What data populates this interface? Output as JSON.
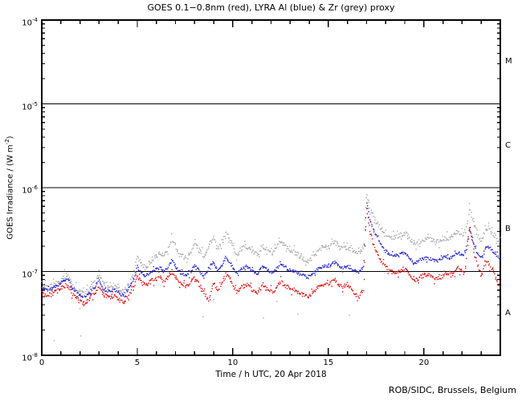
{
  "chart_data": {
    "type": "scatter",
    "title": "GOES 0.1−0.8nm (red), LYRA Al (blue) & Zr (grey) proxy",
    "date": "20 Apr 2018",
    "footer": "ROB/SIDC, Brussels, Belgium",
    "x_axis": {
      "label": "Time / h UTC, 20 Apr 2018",
      "min": 0,
      "max": 24,
      "major_tick_step": 5,
      "minor_tick_step": 1,
      "tick_values": [
        0,
        5,
        10,
        15,
        20
      ],
      "tick_labels": [
        "0",
        "5",
        "10",
        "15",
        "20"
      ]
    },
    "y_axis": {
      "label_prefix": "GOES Irradiance / (W m",
      "label_sup": "-2",
      "label_suffix": ")",
      "scale": "log",
      "min": 1e-08,
      "max": 0.0001,
      "tick_base": "10",
      "tick_exponents": [
        -4,
        -5,
        -6,
        -7,
        -8
      ]
    },
    "reference_lines": [
      1e-05,
      1e-06,
      1e-07
    ],
    "flare_classes": [
      {
        "label": "M",
        "range": [
          1e-05,
          0.0001
        ]
      },
      {
        "label": "C",
        "range": [
          1e-06,
          1e-05
        ]
      },
      {
        "label": "B",
        "range": [
          1e-07,
          1e-06
        ]
      },
      {
        "label": "A",
        "range": [
          1e-08,
          1e-07
        ]
      }
    ],
    "series": [
      {
        "name": "LYRA Zr proxy",
        "color": "#a8a8a8",
        "points": [
          [
            0,
            6.8e-08
          ],
          [
            0.3,
            6.4e-08
          ],
          [
            0.6,
            6.9e-08
          ],
          [
            0.9,
            7.6e-08
          ],
          [
            1.2,
            8.8e-08
          ],
          [
            1.35,
            9.2e-08
          ],
          [
            1.6,
            7e-08
          ],
          [
            1.9,
            5.9e-08
          ],
          [
            2.2,
            5.5e-08
          ],
          [
            2.5,
            6.2e-08
          ],
          [
            2.8,
            7.4e-08
          ],
          [
            3.0,
            9.4e-08
          ],
          [
            3.2,
            7.2e-08
          ],
          [
            3.5,
            6.6e-08
          ],
          [
            3.8,
            6.9e-08
          ],
          [
            4.1,
            6.1e-08
          ],
          [
            4.3,
            5.7e-08
          ],
          [
            4.6,
            7.4e-08
          ],
          [
            4.85,
            1e-07
          ],
          [
            5.0,
            1.6e-07
          ],
          [
            5.2,
            1.25e-07
          ],
          [
            5.45,
            1.13e-07
          ],
          [
            5.7,
            1.28e-07
          ],
          [
            5.95,
            1.5e-07
          ],
          [
            6.15,
            1.65e-07
          ],
          [
            6.4,
            1.5e-07
          ],
          [
            6.6,
            1.8e-07
          ],
          [
            6.8,
            2.4e-07
          ],
          [
            7.0,
            1.95e-07
          ],
          [
            7.3,
            1.55e-07
          ],
          [
            7.6,
            1.45e-07
          ],
          [
            7.8,
            1.7e-07
          ],
          [
            8.0,
            2.2e-07
          ],
          [
            8.25,
            1.8e-07
          ],
          [
            8.5,
            1.52e-07
          ],
          [
            8.8,
            2.2e-07
          ],
          [
            9.0,
            2.5e-07
          ],
          [
            9.2,
            1.8e-07
          ],
          [
            9.45,
            2.3e-07
          ],
          [
            9.65,
            2.9e-07
          ],
          [
            9.9,
            2.3e-07
          ],
          [
            10.2,
            1.55e-07
          ],
          [
            10.5,
            1.9e-07
          ],
          [
            10.75,
            2e-07
          ],
          [
            11.05,
            1.7e-07
          ],
          [
            11.3,
            1.6e-07
          ],
          [
            11.55,
            2e-07
          ],
          [
            11.8,
            1.8e-07
          ],
          [
            12.1,
            1.6e-07
          ],
          [
            12.5,
            2.3e-07
          ],
          [
            12.8,
            2e-07
          ],
          [
            13.2,
            1.7e-07
          ],
          [
            13.6,
            1.45e-07
          ],
          [
            13.95,
            1.3e-07
          ],
          [
            14.3,
            1.6e-07
          ],
          [
            14.65,
            1.95e-07
          ],
          [
            15.0,
            1.95e-07
          ],
          [
            15.35,
            2.3e-07
          ],
          [
            15.7,
            1.9e-07
          ],
          [
            16.0,
            1.95e-07
          ],
          [
            16.3,
            1.75e-07
          ],
          [
            16.6,
            1.65e-07
          ],
          [
            16.85,
            1.9e-07
          ],
          [
            17.0,
            8.5e-07
          ],
          [
            17.15,
            6e-07
          ],
          [
            17.4,
            4.3e-07
          ],
          [
            17.7,
            3.3e-07
          ],
          [
            18.0,
            2.7e-07
          ],
          [
            18.3,
            2.5e-07
          ],
          [
            18.6,
            2.6e-07
          ],
          [
            19.0,
            2.9e-07
          ],
          [
            19.3,
            2.4e-07
          ],
          [
            19.55,
            2.1e-07
          ],
          [
            19.9,
            2.4e-07
          ],
          [
            20.2,
            2.5e-07
          ],
          [
            20.5,
            2.35e-07
          ],
          [
            20.8,
            2.3e-07
          ],
          [
            21.1,
            2.5e-07
          ],
          [
            21.4,
            2.5e-07
          ],
          [
            21.8,
            3.05e-07
          ],
          [
            22.05,
            2.7e-07
          ],
          [
            22.2,
            3.2e-07
          ],
          [
            22.4,
            5.6e-07
          ],
          [
            22.6,
            3.9e-07
          ],
          [
            22.8,
            2.8e-07
          ],
          [
            23.0,
            2.3e-07
          ],
          [
            23.3,
            3.4e-07
          ],
          [
            23.6,
            2.85e-07
          ],
          [
            23.9,
            2.4e-07
          ],
          [
            24,
            2.3e-07
          ]
        ],
        "stray_points": [
          [
            0.65,
            1.5e-08
          ],
          [
            2.0,
            3.6e-08
          ],
          [
            2.05,
            1.7e-08
          ],
          [
            8.45,
            2.9e-08
          ],
          [
            9.0,
            4.6e-08
          ],
          [
            11.6,
            2.8e-08
          ],
          [
            12.3,
            4.4e-08
          ],
          [
            13.4,
            3.1e-08
          ],
          [
            16.1,
            3e-08
          ]
        ]
      },
      {
        "name": "LYRA Al proxy",
        "color": "#2222cc",
        "points": [
          [
            0,
            6.3e-08
          ],
          [
            0.3,
            6e-08
          ],
          [
            0.6,
            6.4e-08
          ],
          [
            0.9,
            7e-08
          ],
          [
            1.2,
            7.9e-08
          ],
          [
            1.35,
            8.2e-08
          ],
          [
            1.6,
            6.4e-08
          ],
          [
            1.9,
            5.4e-08
          ],
          [
            2.2,
            4.9e-08
          ],
          [
            2.5,
            5.6e-08
          ],
          [
            2.8,
            6.6e-08
          ],
          [
            3.0,
            7.9e-08
          ],
          [
            3.2,
            6.3e-08
          ],
          [
            3.5,
            5.8e-08
          ],
          [
            3.8,
            6.1e-08
          ],
          [
            4.1,
            5.4e-08
          ],
          [
            4.3,
            5.1e-08
          ],
          [
            4.6,
            6.4e-08
          ],
          [
            4.85,
            8.4e-08
          ],
          [
            5.0,
            1.15e-07
          ],
          [
            5.2,
            9.6e-08
          ],
          [
            5.45,
            8.8e-08
          ],
          [
            5.7,
            9.6e-08
          ],
          [
            5.95,
            1.05e-07
          ],
          [
            6.15,
            1.1e-07
          ],
          [
            6.4,
            1e-07
          ],
          [
            6.6,
            1.08e-07
          ],
          [
            6.8,
            1.35e-07
          ],
          [
            7.0,
            1.15e-07
          ],
          [
            7.3,
            9.5e-08
          ],
          [
            7.6,
            9e-08
          ],
          [
            7.8,
            1e-07
          ],
          [
            8.0,
            1.2e-07
          ],
          [
            8.25,
            1e-07
          ],
          [
            8.5,
            8.6e-08
          ],
          [
            8.8,
            1.15e-07
          ],
          [
            9.0,
            1.3e-07
          ],
          [
            9.2,
            1e-07
          ],
          [
            9.45,
            1.2e-07
          ],
          [
            9.65,
            1.5e-07
          ],
          [
            9.9,
            1.2e-07
          ],
          [
            10.2,
            9.4e-08
          ],
          [
            10.5,
            1.1e-07
          ],
          [
            10.75,
            1.15e-07
          ],
          [
            11.05,
            1e-07
          ],
          [
            11.3,
            9.5e-08
          ],
          [
            11.55,
            1.15e-07
          ],
          [
            11.8,
            1.05e-07
          ],
          [
            12.1,
            9.5e-08
          ],
          [
            12.5,
            1.25e-07
          ],
          [
            12.8,
            1.1e-07
          ],
          [
            13.2,
            1e-07
          ],
          [
            13.6,
            9.2e-08
          ],
          [
            13.95,
            8.5e-08
          ],
          [
            14.3,
            1e-07
          ],
          [
            14.65,
            1.15e-07
          ],
          [
            15.0,
            1.15e-07
          ],
          [
            15.35,
            1.3e-07
          ],
          [
            15.7,
            1.1e-07
          ],
          [
            16.0,
            1.15e-07
          ],
          [
            16.3,
            1.05e-07
          ],
          [
            16.6,
            9.8e-08
          ],
          [
            16.85,
            1.15e-07
          ],
          [
            17.0,
            6.5e-07
          ],
          [
            17.15,
            4.4e-07
          ],
          [
            17.4,
            3e-07
          ],
          [
            17.7,
            2.2e-07
          ],
          [
            18.0,
            1.75e-07
          ],
          [
            18.3,
            1.55e-07
          ],
          [
            18.6,
            1.55e-07
          ],
          [
            19.0,
            1.7e-07
          ],
          [
            19.3,
            1.4e-07
          ],
          [
            19.55,
            1.25e-07
          ],
          [
            19.9,
            1.4e-07
          ],
          [
            20.2,
            1.45e-07
          ],
          [
            20.5,
            1.35e-07
          ],
          [
            20.8,
            1.35e-07
          ],
          [
            21.1,
            1.5e-07
          ],
          [
            21.4,
            1.45e-07
          ],
          [
            21.8,
            1.7e-07
          ],
          [
            22.05,
            1.55e-07
          ],
          [
            22.2,
            1.8e-07
          ],
          [
            22.4,
            3.3e-07
          ],
          [
            22.6,
            2.2e-07
          ],
          [
            22.8,
            1.65e-07
          ],
          [
            23.0,
            1.45e-07
          ],
          [
            23.3,
            2e-07
          ],
          [
            23.6,
            1.75e-07
          ],
          [
            23.9,
            1.5e-07
          ],
          [
            24,
            1.4e-07
          ]
        ],
        "stray_points": []
      },
      {
        "name": "GOES 0.1-0.8nm",
        "color": "#dd1111",
        "points": [
          [
            0,
            5.6e-08
          ],
          [
            0.3,
            5.1e-08
          ],
          [
            0.6,
            5.5e-08
          ],
          [
            0.9,
            6e-08
          ],
          [
            1.2,
            6.7e-08
          ],
          [
            1.35,
            6.9e-08
          ],
          [
            1.6,
            5.4e-08
          ],
          [
            1.9,
            4.6e-08
          ],
          [
            2.2,
            4.1e-08
          ],
          [
            2.5,
            4.8e-08
          ],
          [
            2.8,
            5.6e-08
          ],
          [
            3.0,
            6.6e-08
          ],
          [
            3.2,
            5.3e-08
          ],
          [
            3.5,
            4.9e-08
          ],
          [
            3.8,
            5.1e-08
          ],
          [
            4.1,
            4.5e-08
          ],
          [
            4.3,
            4.3e-08
          ],
          [
            4.6,
            5.4e-08
          ],
          [
            4.85,
            7e-08
          ],
          [
            5.0,
            8.8e-08
          ],
          [
            5.2,
            7.4e-08
          ],
          [
            5.45,
            6.9e-08
          ],
          [
            5.7,
            7.5e-08
          ],
          [
            5.95,
            8.2e-08
          ],
          [
            6.15,
            8.5e-08
          ],
          [
            6.4,
            7.7e-08
          ],
          [
            6.6,
            8.4e-08
          ],
          [
            6.8,
            1e-07
          ],
          [
            7.0,
            8.7e-08
          ],
          [
            7.3,
            7.1e-08
          ],
          [
            7.6,
            6.7e-08
          ],
          [
            7.8,
            7.5e-08
          ],
          [
            8.0,
            8.7e-08
          ],
          [
            8.25,
            6.9e-08
          ],
          [
            8.5,
            5.4e-08
          ],
          [
            8.75,
            4.6e-08
          ],
          [
            9.0,
            7.4e-08
          ],
          [
            9.2,
            6e-08
          ],
          [
            9.45,
            7.4e-08
          ],
          [
            9.65,
            9.4e-08
          ],
          [
            9.9,
            7.4e-08
          ],
          [
            10.2,
            5.6e-08
          ],
          [
            10.5,
            6.6e-08
          ],
          [
            10.75,
            7e-08
          ],
          [
            11.05,
            6e-08
          ],
          [
            11.3,
            5.6e-08
          ],
          [
            11.55,
            7e-08
          ],
          [
            11.8,
            6.3e-08
          ],
          [
            12.1,
            5.6e-08
          ],
          [
            12.5,
            7.6e-08
          ],
          [
            12.8,
            6.7e-08
          ],
          [
            13.2,
            6e-08
          ],
          [
            13.6,
            5.4e-08
          ],
          [
            13.95,
            5e-08
          ],
          [
            14.3,
            6e-08
          ],
          [
            14.65,
            7e-08
          ],
          [
            15.0,
            7e-08
          ],
          [
            15.35,
            8e-08
          ],
          [
            15.7,
            6.5e-08
          ],
          [
            16.0,
            6.9e-08
          ],
          [
            16.3,
            5.8e-08
          ],
          [
            16.6,
            4.9e-08
          ],
          [
            16.85,
            6.2e-08
          ],
          [
            17.0,
            5.3e-07
          ],
          [
            17.15,
            3.2e-07
          ],
          [
            17.4,
            2e-07
          ],
          [
            17.7,
            1.4e-07
          ],
          [
            18.0,
            1.15e-07
          ],
          [
            18.3,
            1e-07
          ],
          [
            18.6,
            9.5e-08
          ],
          [
            19.0,
            1.05e-07
          ],
          [
            19.3,
            8.8e-08
          ],
          [
            19.55,
            7.8e-08
          ],
          [
            19.9,
            8.8e-08
          ],
          [
            20.2,
            9.2e-08
          ],
          [
            20.5,
            8.2e-08
          ],
          [
            20.8,
            8.2e-08
          ],
          [
            21.1,
            9.5e-08
          ],
          [
            21.4,
            9e-08
          ],
          [
            21.8,
            1.1e-07
          ],
          [
            22.05,
            9.5e-08
          ],
          [
            22.2,
            1.2e-07
          ],
          [
            22.4,
            3.6e-07
          ],
          [
            22.6,
            1.9e-07
          ],
          [
            22.8,
            1.2e-07
          ],
          [
            23.0,
            8.8e-08
          ],
          [
            23.3,
            1.35e-07
          ],
          [
            23.6,
            1.05e-07
          ],
          [
            23.9,
            7e-08
          ],
          [
            24,
            6.2e-08
          ]
        ],
        "stray_points": []
      }
    ]
  }
}
